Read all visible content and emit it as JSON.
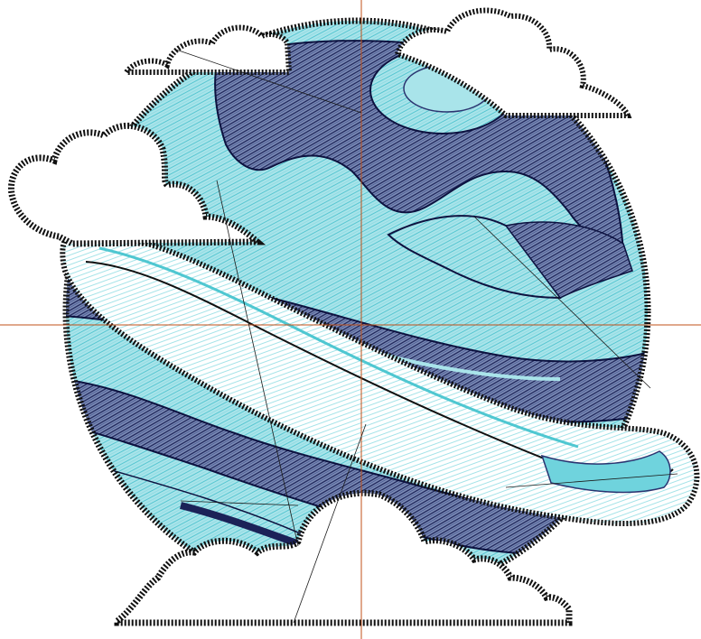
{
  "design": {
    "subject": "planet-with-ring-and-clouds",
    "colors": {
      "background": "#ffffff",
      "planet_light": "#a9e4ea",
      "planet_mid": "#6fd3dd",
      "band_dark": "#2b3470",
      "band_outline": "#0d1240",
      "satin_stitch": "#111111",
      "ring_fill": "#ffffff",
      "ring_accent": "#4fc7d1",
      "guide_line": "#c0501a",
      "travel_line": "#1a1a1a"
    },
    "icons": [
      "planet-icon",
      "ring-icon",
      "cloud-icon",
      "crosshair-icon"
    ],
    "guides": {
      "crosshair": true
    }
  }
}
